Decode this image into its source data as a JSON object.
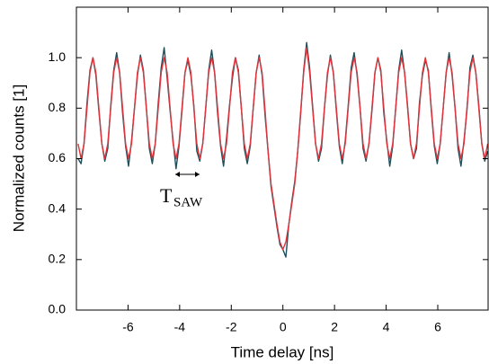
{
  "chart_data": {
    "type": "line",
    "xlabel": "Time delay [ns]",
    "ylabel": "Normalized counts [1]",
    "annotation": {
      "symbol": "T",
      "subscript": "SAW"
    },
    "xlim": [
      -8,
      7.95
    ],
    "ylim": [
      0,
      1.2
    ],
    "xticks": [
      -6,
      -4,
      -2,
      0,
      2,
      4,
      6
    ],
    "yticks": [
      {
        "value": 0,
        "label": "0.0"
      },
      0.2,
      0.4,
      0.6,
      0.8,
      {
        "value": 1,
        "label": "1.0"
      }
    ],
    "x": [
      -7.935,
      -7.82,
      -7.705,
      -7.59,
      -7.475,
      -7.36,
      -7.245,
      -7.13,
      -7.015,
      -6.9,
      -6.785,
      -6.67,
      -6.555,
      -6.44,
      -6.325,
      -6.21,
      -6.095,
      -5.98,
      -5.865,
      -5.75,
      -5.635,
      -5.52,
      -5.405,
      -5.29,
      -5.175,
      -5.06,
      -4.945,
      -4.83,
      -4.715,
      -4.6,
      -4.485,
      -4.37,
      -4.255,
      -4.14,
      -4.025,
      -3.91,
      -3.795,
      -3.68,
      -3.565,
      -3.45,
      -3.335,
      -3.22,
      -3.105,
      -2.99,
      -2.875,
      -2.76,
      -2.645,
      -2.53,
      -2.415,
      -2.3,
      -2.185,
      -2.07,
      -1.955,
      -1.84,
      -1.725,
      -1.61,
      -1.495,
      -1.38,
      -1.265,
      -1.15,
      -1.035,
      -0.92,
      -0.805,
      -0.69,
      -0.575,
      -0.46,
      -0.345,
      -0.23,
      -0.115,
      0,
      0.115,
      0.23,
      0.345,
      0.46,
      0.575,
      0.69,
      0.805,
      0.92,
      1.035,
      1.15,
      1.265,
      1.38,
      1.495,
      1.61,
      1.725,
      1.84,
      1.955,
      2.07,
      2.185,
      2.3,
      2.415,
      2.53,
      2.645,
      2.76,
      2.875,
      2.99,
      3.105,
      3.22,
      3.335,
      3.45,
      3.565,
      3.68,
      3.795,
      3.91,
      4.025,
      4.14,
      4.255,
      4.37,
      4.485,
      4.6,
      4.715,
      4.83,
      4.945,
      5.06,
      5.175,
      5.29,
      5.405,
      5.52,
      5.635,
      5.75,
      5.865,
      5.98,
      6.095,
      6.21,
      6.325,
      6.44,
      6.555,
      6.67,
      6.785,
      6.9,
      7.015,
      7.13,
      7.245,
      7.36,
      7.475,
      7.59,
      7.705,
      7.82,
      7.935
    ],
    "series": [
      {
        "color": "#1d4f5c",
        "values": [
          0.6,
          0.58,
          0.66,
          0.82,
          0.95,
          1.0,
          0.93,
          0.79,
          0.66,
          0.59,
          0.64,
          0.81,
          0.95,
          1.02,
          0.94,
          0.78,
          0.65,
          0.57,
          0.67,
          0.8,
          0.93,
          1.01,
          0.95,
          0.8,
          0.64,
          0.58,
          0.66,
          0.82,
          0.96,
          1.04,
          0.92,
          0.79,
          0.67,
          0.56,
          0.65,
          0.79,
          0.94,
          0.99,
          0.93,
          0.81,
          0.63,
          0.59,
          0.66,
          0.8,
          0.95,
          1.03,
          0.94,
          0.78,
          0.65,
          0.57,
          0.68,
          0.81,
          0.92,
          1.0,
          0.95,
          0.8,
          0.64,
          0.58,
          0.65,
          0.8,
          0.94,
          1.01,
          0.93,
          0.77,
          0.63,
          0.49,
          0.41,
          0.33,
          0.26,
          0.24,
          0.21,
          0.34,
          0.43,
          0.51,
          0.63,
          0.78,
          0.95,
          1.06,
          0.96,
          0.81,
          0.66,
          0.59,
          0.64,
          0.8,
          0.93,
          1.01,
          0.94,
          0.79,
          0.65,
          0.58,
          0.67,
          0.81,
          0.96,
          1.02,
          0.93,
          0.8,
          0.64,
          0.59,
          0.66,
          0.79,
          0.94,
          1.0,
          0.95,
          0.78,
          0.67,
          0.57,
          0.65,
          0.8,
          0.95,
          1.03,
          0.94,
          0.81,
          0.66,
          0.6,
          0.64,
          0.82,
          0.93,
          0.99,
          0.95,
          0.79,
          0.65,
          0.58,
          0.66,
          0.8,
          0.94,
          1.02,
          0.93,
          0.8,
          0.64,
          0.57,
          0.67,
          0.79,
          0.96,
          1.01,
          0.94,
          0.81,
          0.66,
          0.59,
          0.63
        ]
      },
      {
        "color": "#e0343c",
        "values": [
          0.659,
          0.6,
          0.659,
          0.8,
          0.941,
          1,
          0.941,
          0.8,
          0.659,
          0.6,
          0.659,
          0.8,
          0.941,
          1,
          0.941,
          0.8,
          0.659,
          0.6,
          0.659,
          0.8,
          0.941,
          1,
          0.941,
          0.8,
          0.659,
          0.6,
          0.659,
          0.8,
          0.941,
          1,
          0.941,
          0.8,
          0.659,
          0.6,
          0.659,
          0.8,
          0.941,
          1,
          0.941,
          0.8,
          0.659,
          0.6,
          0.659,
          0.8,
          0.941,
          1,
          0.941,
          0.8,
          0.659,
          0.6,
          0.659,
          0.8,
          0.941,
          1,
          0.941,
          0.8,
          0.659,
          0.6,
          0.659,
          0.8,
          0.941,
          1,
          0.941,
          0.79,
          0.63,
          0.5,
          0.42,
          0.34,
          0.27,
          0.24,
          0.27,
          0.34,
          0.42,
          0.5,
          0.63,
          0.79,
          0.941,
          1.04,
          0.941,
          0.8,
          0.659,
          0.6,
          0.659,
          0.8,
          0.941,
          1,
          0.941,
          0.8,
          0.659,
          0.6,
          0.659,
          0.8,
          0.941,
          1,
          0.941,
          0.8,
          0.659,
          0.6,
          0.659,
          0.8,
          0.941,
          1,
          0.941,
          0.8,
          0.659,
          0.6,
          0.659,
          0.8,
          0.941,
          1,
          0.941,
          0.8,
          0.659,
          0.6,
          0.659,
          0.8,
          0.941,
          1,
          0.941,
          0.8,
          0.659,
          0.6,
          0.659,
          0.8,
          0.941,
          1,
          0.941,
          0.8,
          0.659,
          0.6,
          0.659,
          0.8,
          0.941,
          1,
          0.941,
          0.8,
          0.659,
          0.6,
          0.659
        ]
      }
    ]
  }
}
